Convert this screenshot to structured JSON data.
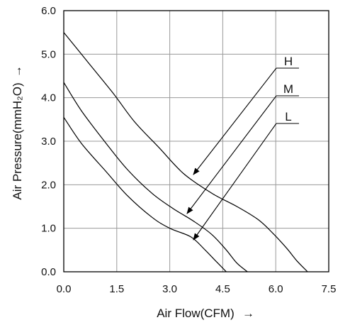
{
  "chart_data": {
    "type": "line",
    "xlabel": "Air Flow(CFM)",
    "ylabel": "Air Pressure(mmH₂O)",
    "xlim": [
      0,
      7.5
    ],
    "ylim": [
      0,
      6.0
    ],
    "x_ticks": [
      "0.0",
      "1.5",
      "3.0",
      "4.5",
      "6.0",
      "7.5"
    ],
    "y_ticks": [
      "0.0",
      "1.0",
      "2.0",
      "3.0",
      "4.0",
      "5.0",
      "6.0"
    ],
    "grid": true,
    "series": [
      {
        "name": "H",
        "x": [
          0.0,
          0.7,
          1.4,
          2.0,
          2.7,
          3.4,
          4.2,
          4.9,
          5.5,
          5.9,
          6.3,
          6.6,
          6.9
        ],
        "y": [
          5.5,
          4.8,
          4.1,
          3.45,
          2.85,
          2.25,
          1.8,
          1.5,
          1.2,
          0.9,
          0.55,
          0.25,
          0.0
        ]
      },
      {
        "name": "M",
        "x": [
          0.0,
          0.5,
          1.2,
          1.8,
          2.5,
          3.1,
          3.7,
          4.2,
          4.6,
          4.9,
          5.2
        ],
        "y": [
          4.35,
          3.7,
          2.95,
          2.35,
          1.8,
          1.45,
          1.15,
          0.85,
          0.5,
          0.2,
          0.0
        ]
      },
      {
        "name": "L",
        "x": [
          0.0,
          0.5,
          1.2,
          1.8,
          2.5,
          3.0,
          3.6,
          4.0,
          4.3,
          4.6
        ],
        "y": [
          3.55,
          2.95,
          2.3,
          1.75,
          1.25,
          1.0,
          0.8,
          0.5,
          0.25,
          0.0
        ]
      }
    ],
    "annotations": [
      {
        "text": "H",
        "series": "H"
      },
      {
        "text": "M",
        "series": "M"
      },
      {
        "text": "L",
        "series": "L"
      }
    ]
  },
  "axes": {
    "x_arrow": "→",
    "y_arrow": "→"
  }
}
